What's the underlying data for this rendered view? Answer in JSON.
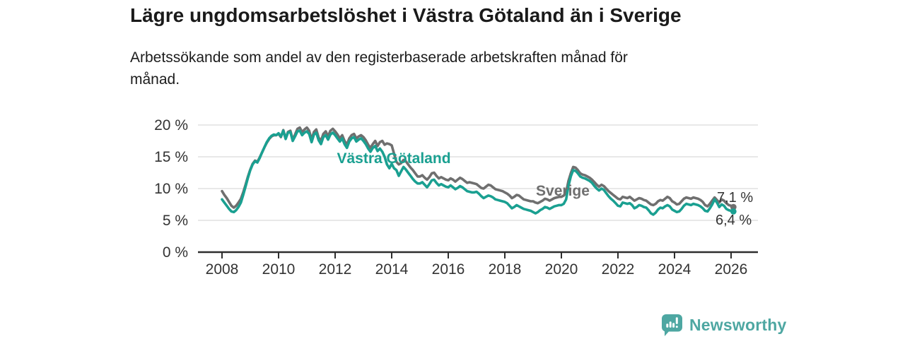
{
  "title": "Lägre ungdomsarbetslöshet i Västra Götaland än i Sverige",
  "subtitle_lines": [
    "Arbetssökande som andel av den registerbaserade arbetskraften månad för",
    "månad."
  ],
  "footer": {
    "brand": "Newsworthy",
    "logo_icon": "bar-chart-speech-bubble"
  },
  "chart_data": {
    "type": "line",
    "x_unit": "month",
    "x_start": "2008-01",
    "x_end": "2026-02",
    "grid": true,
    "ylim": [
      0,
      21
    ],
    "colors": {
      "grid": "#d9d9d9",
      "axis": "#2e2e2e",
      "tick_text": "#333333",
      "end_label_text": "#333333"
    },
    "y_ticks": [
      {
        "value": 0,
        "label": "0 %"
      },
      {
        "value": 5,
        "label": "5 %"
      },
      {
        "value": 10,
        "label": "10 %"
      },
      {
        "value": 15,
        "label": "15 %"
      },
      {
        "value": 20,
        "label": "20 %"
      }
    ],
    "x_ticks": [
      {
        "year": 2008,
        "label": "2008"
      },
      {
        "year": 2010,
        "label": "2010"
      },
      {
        "year": 2012,
        "label": "2012"
      },
      {
        "year": 2014,
        "label": "2014"
      },
      {
        "year": 2016,
        "label": "2016"
      },
      {
        "year": 2018,
        "label": "2018"
      },
      {
        "year": 2020,
        "label": "2020"
      },
      {
        "year": 2022,
        "label": "2022"
      },
      {
        "year": 2024,
        "label": "2024"
      },
      {
        "year": 2026,
        "label": "2026"
      }
    ],
    "series": [
      {
        "name": "Sverige",
        "slug": "sverige",
        "color": "#6f6f6f",
        "end_label": "7,1 %",
        "end_value": 7.1,
        "values": [
          9.6,
          9.0,
          8.5,
          7.9,
          7.3,
          7.0,
          7.3,
          7.8,
          8.4,
          9.4,
          10.6,
          11.9,
          13.0,
          13.9,
          14.4,
          14.2,
          14.9,
          15.7,
          16.5,
          17.2,
          17.8,
          18.2,
          18.4,
          18.4,
          18.6,
          18.1,
          19.2,
          17.9,
          18.9,
          19.1,
          17.7,
          18.5,
          19.4,
          19.6,
          18.9,
          19.3,
          19.6,
          19.1,
          17.7,
          18.9,
          19.3,
          18.0,
          17.5,
          18.6,
          19.0,
          18.2,
          19.1,
          19.4,
          19.0,
          18.5,
          17.9,
          18.4,
          17.5,
          16.9,
          17.9,
          18.4,
          18.6,
          17.9,
          18.2,
          18.4,
          18.1,
          17.6,
          16.9,
          16.4,
          17.0,
          17.5,
          16.7,
          17.3,
          17.5,
          16.9,
          17.1,
          17.0,
          16.8,
          15.5,
          14.2,
          13.8,
          14.0,
          14.5,
          14.3,
          13.8,
          13.3,
          12.9,
          12.4,
          11.9,
          11.9,
          12.1,
          11.7,
          11.4,
          11.8,
          12.4,
          12.5,
          12.0,
          11.6,
          11.8,
          11.6,
          11.4,
          11.3,
          11.6,
          11.4,
          11.1,
          11.4,
          11.7,
          11.5,
          11.2,
          10.9,
          11.0,
          10.9,
          10.8,
          10.7,
          10.4,
          10.1,
          10.0,
          10.3,
          10.6,
          10.5,
          10.2,
          9.9,
          9.8,
          9.7,
          9.6,
          9.4,
          9.2,
          8.9,
          8.5,
          8.7,
          9.0,
          8.9,
          8.6,
          8.3,
          8.2,
          8.1,
          8.0,
          8.0,
          7.8,
          7.7,
          7.9,
          8.1,
          8.4,
          8.3,
          8.1,
          8.3,
          8.5,
          8.6,
          8.7,
          8.7,
          8.9,
          9.4,
          11.2,
          12.4,
          13.4,
          13.3,
          12.9,
          12.4,
          12.2,
          12.1,
          11.9,
          11.7,
          11.4,
          11.0,
          10.6,
          10.3,
          10.6,
          10.4,
          10.0,
          9.6,
          9.3,
          9.0,
          8.7,
          8.4,
          8.3,
          8.7,
          8.6,
          8.5,
          8.7,
          8.4,
          8.1,
          8.3,
          8.5,
          8.4,
          8.2,
          8.1,
          7.8,
          7.5,
          7.4,
          7.6,
          8.0,
          8.2,
          8.1,
          8.4,
          8.7,
          8.5,
          8.0,
          7.8,
          7.5,
          7.6,
          8.0,
          8.4,
          8.6,
          8.5,
          8.4,
          8.6,
          8.5,
          8.4,
          8.2,
          7.9,
          7.4,
          7.2,
          7.6,
          8.1,
          8.6,
          8.2,
          7.8,
          8.3,
          8.1,
          7.7,
          7.4,
          7.3,
          7.1
        ]
      },
      {
        "name": "Västra Götaland",
        "slug": "vastra-gotaland",
        "color": "#1aa091",
        "end_label": "6,4 %",
        "end_value": 6.4,
        "values": [
          8.3,
          7.8,
          7.3,
          6.8,
          6.4,
          6.3,
          6.6,
          7.1,
          7.8,
          9.0,
          10.3,
          11.7,
          12.9,
          13.8,
          14.3,
          14.1,
          14.8,
          15.7,
          16.5,
          17.3,
          17.9,
          18.3,
          18.5,
          18.4,
          18.7,
          18.2,
          19.1,
          17.8,
          18.8,
          18.9,
          17.5,
          18.2,
          19.0,
          19.1,
          18.4,
          18.8,
          19.0,
          18.6,
          17.3,
          18.5,
          18.8,
          17.6,
          17.0,
          18.1,
          18.4,
          17.7,
          18.5,
          18.8,
          18.4,
          17.9,
          17.4,
          17.9,
          17.0,
          16.4,
          17.4,
          17.9,
          18.1,
          17.4,
          17.7,
          17.9,
          17.5,
          17.0,
          16.3,
          15.8,
          16.4,
          16.7,
          15.9,
          16.3,
          15.8,
          15.0,
          13.8,
          13.2,
          13.9,
          13.2,
          12.9,
          12.0,
          12.7,
          13.4,
          13.0,
          12.5,
          12.0,
          11.5,
          11.1,
          10.8,
          10.8,
          11.0,
          10.6,
          10.2,
          10.7,
          11.3,
          11.4,
          10.9,
          10.5,
          10.7,
          10.5,
          10.3,
          10.2,
          10.5,
          10.2,
          9.9,
          10.1,
          10.4,
          10.2,
          9.9,
          9.6,
          9.5,
          9.4,
          9.4,
          9.5,
          9.2,
          8.8,
          8.5,
          8.7,
          8.9,
          8.8,
          8.6,
          8.3,
          8.2,
          8.1,
          8.0,
          7.9,
          7.7,
          7.3,
          6.9,
          7.1,
          7.4,
          7.2,
          7.0,
          6.8,
          6.7,
          6.6,
          6.5,
          6.3,
          6.1,
          6.3,
          6.6,
          6.8,
          7.1,
          7.0,
          6.8,
          7.0,
          7.2,
          7.3,
          7.4,
          7.4,
          7.6,
          8.3,
          10.4,
          11.9,
          12.9,
          12.8,
          12.4,
          11.9,
          11.7,
          11.6,
          11.4,
          11.2,
          10.9,
          10.4,
          10.0,
          9.7,
          10.0,
          9.8,
          9.3,
          8.8,
          8.4,
          8.1,
          7.7,
          7.3,
          7.2,
          7.8,
          7.7,
          7.6,
          7.7,
          7.4,
          6.9,
          7.1,
          7.4,
          7.3,
          7.1,
          7.0,
          6.6,
          6.1,
          5.9,
          6.2,
          6.7,
          7.0,
          6.9,
          7.2,
          7.4,
          7.2,
          6.7,
          6.5,
          6.3,
          6.4,
          6.8,
          7.3,
          7.6,
          7.5,
          7.4,
          7.6,
          7.5,
          7.4,
          7.2,
          6.9,
          6.5,
          6.4,
          6.9,
          7.5,
          8.3,
          7.8,
          7.1,
          7.5,
          7.3,
          6.8,
          6.6,
          6.5,
          6.4
        ]
      }
    ]
  }
}
